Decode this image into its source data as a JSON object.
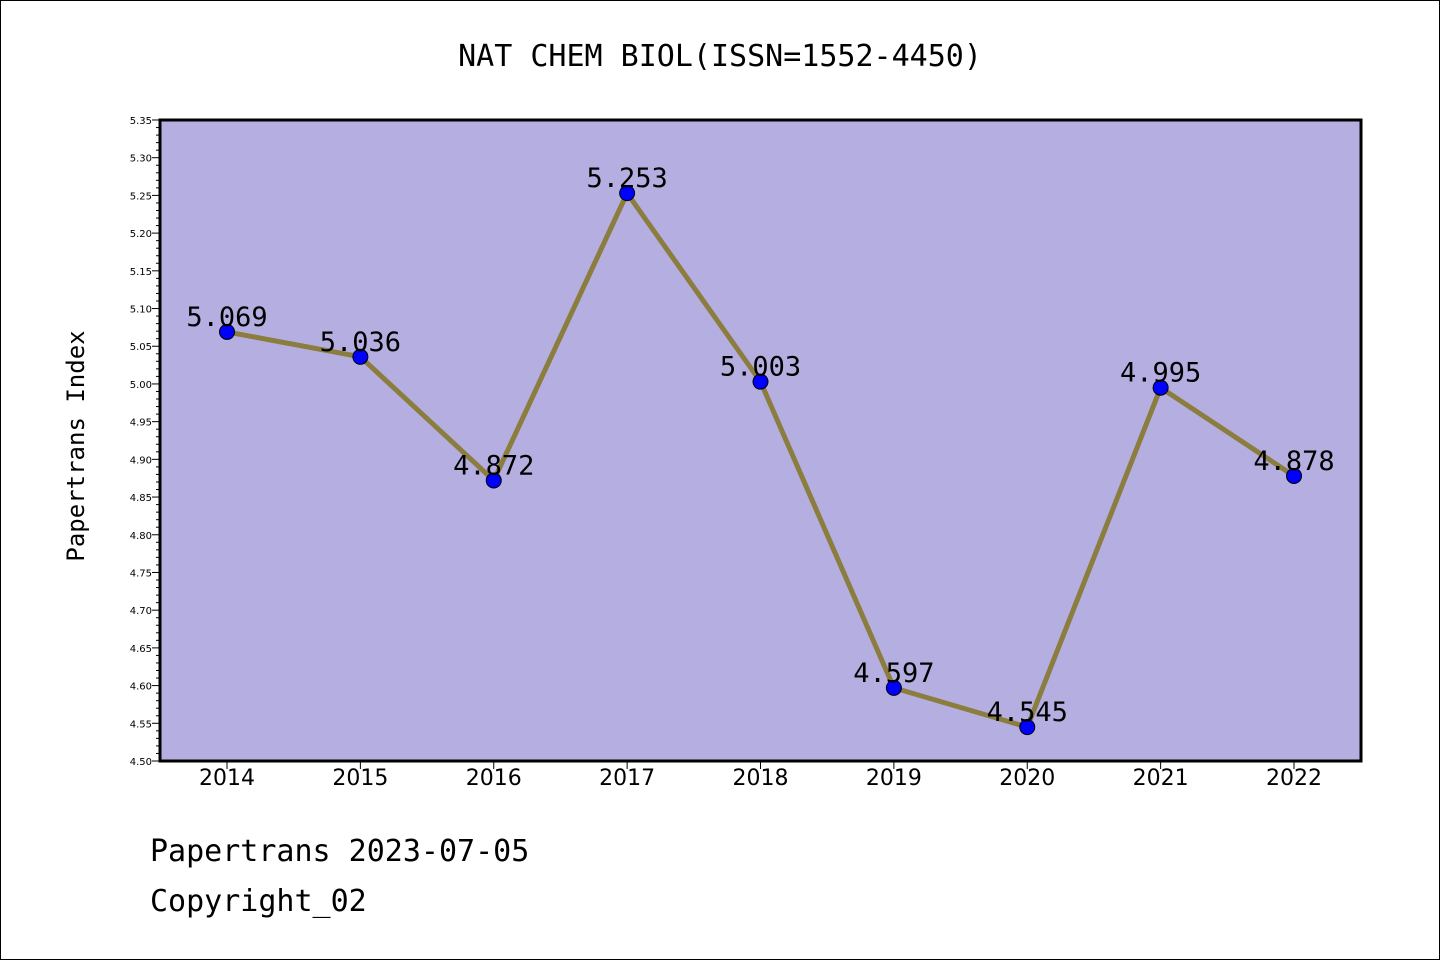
{
  "chart_data": {
    "type": "line",
    "title": "NAT CHEM BIOL(ISSN=1552-4450)",
    "ylabel": "Papertrans Index",
    "xlabel": "",
    "categories": [
      "2014",
      "2015",
      "2016",
      "2017",
      "2018",
      "2019",
      "2020",
      "2021",
      "2022"
    ],
    "series": [
      {
        "values": [
          5.069,
          5.036,
          4.872,
          5.253,
          5.003,
          4.597,
          4.545,
          4.995,
          4.878
        ],
        "labels": [
          "5.069",
          "5.036",
          "4.872",
          "5.253",
          "5.003",
          "4.597",
          "4.545",
          "4.995",
          "4.878"
        ]
      }
    ],
    "ylim": [
      4.5,
      5.35
    ],
    "yticks": [
      "4.50",
      "4.55",
      "4.60",
      "4.65",
      "4.70",
      "4.75",
      "4.80",
      "4.85",
      "4.90",
      "4.95",
      "5.00",
      "5.05",
      "5.10",
      "5.15",
      "5.20",
      "5.25",
      "5.30",
      "5.35"
    ],
    "grid": false,
    "colors": {
      "plot_background": "#b5aee1",
      "line": "#8b7d3e",
      "marker": "#0000ff"
    }
  },
  "footer": {
    "line1": "Papertrans 2023-07-05",
    "line2": "Copyright_02"
  }
}
